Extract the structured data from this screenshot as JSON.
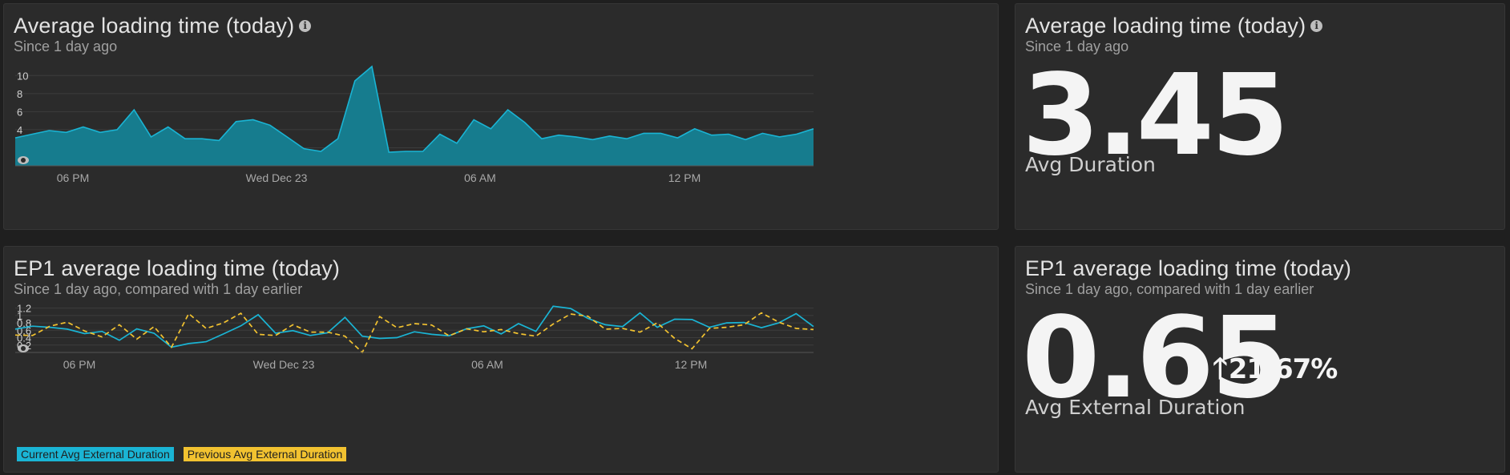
{
  "colors": {
    "current": "#1ab4d4",
    "previous": "#f2c230",
    "area_fill": "#167c8e"
  },
  "top_chart_panel": {
    "title": "Average loading time (today)",
    "subtitle": "Since 1 day ago",
    "info_icon": "info-circle-icon",
    "eye_icon": "eye-icon"
  },
  "top_metric_panel": {
    "title": "Average loading time (today)",
    "subtitle": "Since 1 day ago",
    "value": "3.45",
    "label": "Avg Duration",
    "info_icon": "info-circle-icon"
  },
  "bottom_chart_panel": {
    "title": "EP1 average loading time (today)",
    "subtitle": "Since 1 day ago, compared with 1 day earlier",
    "legend_current": "Current Avg External Duration",
    "legend_previous": "Previous Avg External Duration",
    "eye_icon": "eye-icon"
  },
  "bottom_metric_panel": {
    "title": "EP1 average loading time (today)",
    "subtitle": "Since 1 day ago, compared with 1 day earlier",
    "value": "0.65",
    "delta": "21.67%",
    "delta_icon": "arrow-up-icon",
    "label": "Avg External Duration"
  },
  "chart_data": [
    {
      "type": "area",
      "x_tick_labels": [
        "06 PM",
        "Wed Dec 23",
        "06 AM",
        "12 PM"
      ],
      "y_ticks": [
        2,
        4,
        6,
        8,
        10
      ],
      "ylim": [
        0,
        11
      ],
      "grid": true,
      "series": [
        {
          "values": [
            3.1,
            3.5,
            3.9,
            3.7,
            4.3,
            3.7,
            4.0,
            6.2,
            3.2,
            4.3,
            3.0,
            3.0,
            2.8,
            4.9,
            5.1,
            4.5,
            3.2,
            1.9,
            1.6,
            3.0,
            9.4,
            11.0,
            1.5,
            1.6,
            1.6,
            3.5,
            2.5,
            5.1,
            4.1,
            6.2,
            4.8,
            3.0,
            3.4,
            3.2,
            2.9,
            3.3,
            3.0,
            3.6,
            3.6,
            3.1,
            4.1,
            3.4,
            3.5,
            2.9,
            3.6,
            3.2,
            3.5,
            4.1
          ]
        }
      ]
    },
    {
      "type": "line",
      "x_tick_labels": [
        "06 PM",
        "Wed Dec 23",
        "06 AM",
        "12 PM"
      ],
      "y_ticks": [
        0.2,
        0.4,
        0.6,
        0.8,
        1,
        1.2
      ],
      "ylim": [
        0,
        1.3
      ],
      "grid": true,
      "legend_position": "bottom-left",
      "series": [
        {
          "name": "Current Avg External Duration",
          "values": [
            0.63,
            0.71,
            0.68,
            0.63,
            0.51,
            0.57,
            0.33,
            0.64,
            0.52,
            0.14,
            0.24,
            0.29,
            0.5,
            0.72,
            1.02,
            0.52,
            0.59,
            0.46,
            0.53,
            0.95,
            0.44,
            0.38,
            0.4,
            0.56,
            0.49,
            0.45,
            0.64,
            0.72,
            0.5,
            0.78,
            0.57,
            1.25,
            1.19,
            0.92,
            0.75,
            0.7,
            1.07,
            0.68,
            0.9,
            0.89,
            0.68,
            0.8,
            0.81,
            0.67,
            0.8,
            1.05,
            0.7
          ]
        },
        {
          "name": "Previous Avg External Duration",
          "values": [
            0.47,
            0.46,
            0.71,
            0.82,
            0.58,
            0.42,
            0.75,
            0.36,
            0.7,
            0.14,
            1.05,
            0.65,
            0.8,
            1.06,
            0.49,
            0.46,
            0.75,
            0.55,
            0.55,
            0.44,
            0.0,
            0.97,
            0.67,
            0.78,
            0.74,
            0.45,
            0.64,
            0.56,
            0.62,
            0.51,
            0.44,
            0.77,
            1.04,
            0.98,
            0.63,
            0.65,
            0.55,
            0.8,
            0.38,
            0.1,
            0.65,
            0.68,
            0.75,
            1.07,
            0.82,
            0.65,
            0.62
          ]
        }
      ]
    }
  ]
}
